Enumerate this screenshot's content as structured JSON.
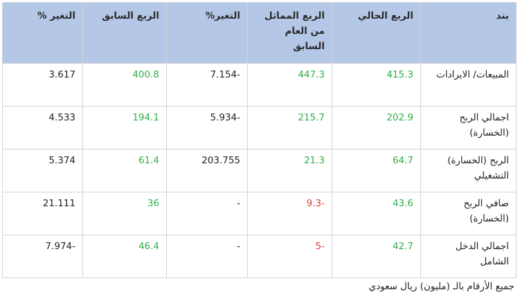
{
  "table": {
    "headers": [
      "بند",
      "الربع الحالي",
      "الربع المماثل من العام السابق",
      "التغير%",
      "الربع السابق",
      "التغير %"
    ],
    "rows": [
      {
        "label": "المبيعات/ الايرادات",
        "current": "415.3",
        "same_last_year": "447.3",
        "change_yoy": "7.154-",
        "previous": "400.8",
        "change_qoq": "3.617"
      },
      {
        "label": "اجمالي الربح (الخسارة)",
        "current": "202.9",
        "same_last_year": "215.7",
        "change_yoy": "5.934-",
        "previous": "194.1",
        "change_qoq": "4.533"
      },
      {
        "label": "الربح (الخسارة) التشغيلي",
        "current": "64.7",
        "same_last_year": "21.3",
        "change_yoy": "203.755",
        "previous": "61.4",
        "change_qoq": "5.374"
      },
      {
        "label": "صافي الربح (الخسارة)",
        "current": "43.6",
        "same_last_year": "9.3-",
        "change_yoy": "-",
        "previous": "36",
        "change_qoq": "21.111"
      },
      {
        "label": "اجمالي الدخل الشامل",
        "current": "42.7",
        "same_last_year": "5-",
        "change_yoy": "-",
        "previous": "46.4",
        "change_qoq": "7.974-"
      }
    ],
    "colors": {
      "header_bg": "#b4c7e7",
      "positive": "#2fae48",
      "negative": "#e23b3b",
      "neutral": "#222222",
      "border": "#d3d3d3"
    }
  },
  "footnote": "جميع الأرقام بالـ (مليون) ريال سعودي"
}
